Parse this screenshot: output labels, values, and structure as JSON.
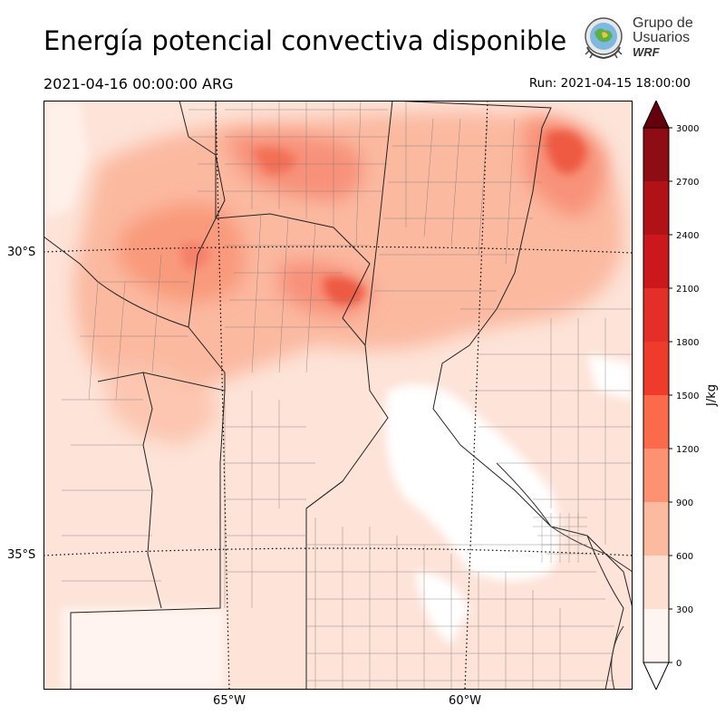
{
  "title": "Energía potencial convectiva disponible",
  "valid_time": "2021-04-16 00:00:00 ARG",
  "run_time": "Run: 2021-04-15 18:00:00",
  "logo": {
    "line1": "Grupo de",
    "line2": "Usuarios",
    "line3": "WRF"
  },
  "map": {
    "lat_labels": [
      "30°S",
      "35°S"
    ],
    "lon_labels": [
      "65°W",
      "60°W"
    ]
  },
  "colorbar": {
    "unit": "J/kg",
    "ticks": [
      "0",
      "300",
      "600",
      "900",
      "1200",
      "1500",
      "1800",
      "2100",
      "2400",
      "2700",
      "3000"
    ],
    "colors": [
      "#fff5f0",
      "#fee0d2",
      "#fcbba1",
      "#fc9272",
      "#fb6a4a",
      "#ef3b2c",
      "#e32f27",
      "#cb181d",
      "#b11218",
      "#8e0d15",
      "#67000d"
    ]
  },
  "chart_data": {
    "type": "heatmap",
    "variable": "Energía potencial convectiva disponible",
    "units": "J/kg",
    "levels": [
      0,
      300,
      600,
      900,
      1200,
      1500,
      1800,
      2100,
      2400,
      2700,
      3000
    ],
    "extend": "both",
    "lat_ticks": [
      "30°S",
      "35°S"
    ],
    "lon_ticks": [
      "65°W",
      "60°W"
    ]
  }
}
